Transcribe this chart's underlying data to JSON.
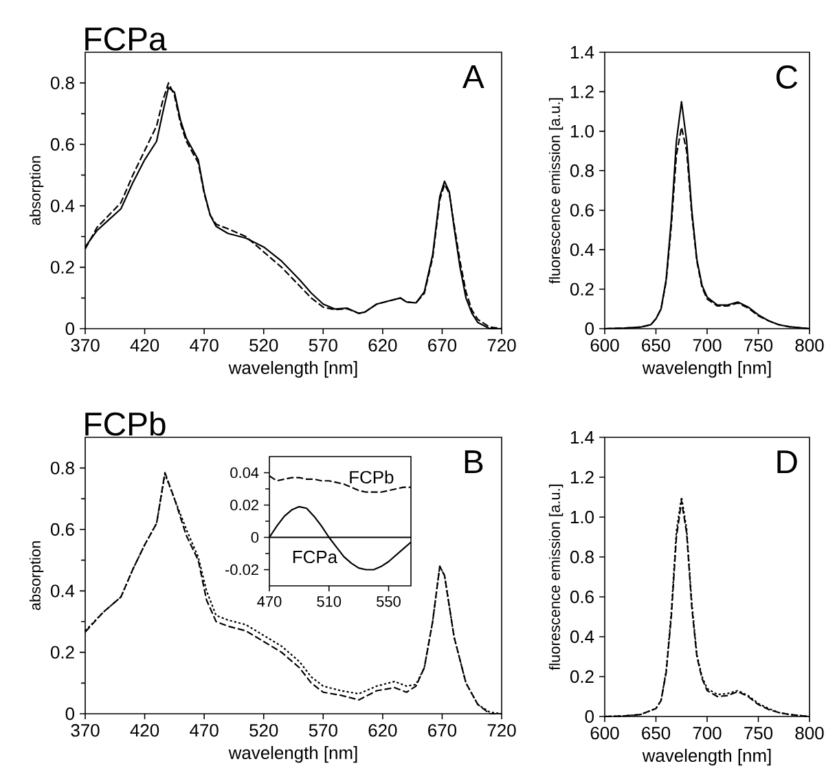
{
  "chart_data": [
    {
      "type": "line",
      "title": "FCPa",
      "xlabel": "wavelength [nm]",
      "ylabel": "absorption",
      "annotations": [
        "A"
      ],
      "xlim": [
        370,
        720
      ],
      "ylim": [
        0,
        0.9
      ],
      "xticks": [
        370,
        420,
        470,
        520,
        570,
        620,
        670,
        720
      ],
      "yticks": [
        0,
        0.2,
        0.4,
        0.6,
        0.8
      ],
      "x": [
        370,
        380,
        390,
        400,
        410,
        420,
        430,
        435,
        440,
        445,
        450,
        455,
        465,
        470,
        475,
        480,
        490,
        505,
        520,
        535,
        550,
        560,
        570,
        580,
        590,
        600,
        605,
        615,
        625,
        635,
        640,
        648,
        655,
        662,
        668,
        672,
        676,
        680,
        685,
        690,
        695,
        700,
        710,
        720
      ],
      "series": [
        {
          "color": "#000000",
          "line_style": "solid",
          "values": [
            0.266,
            0.32,
            0.355,
            0.39,
            0.475,
            0.55,
            0.61,
            0.7,
            0.785,
            0.77,
            0.68,
            0.62,
            0.55,
            0.445,
            0.37,
            0.333,
            0.31,
            0.295,
            0.266,
            0.22,
            0.16,
            0.116,
            0.08,
            0.064,
            0.067,
            0.05,
            0.054,
            0.08,
            0.09,
            0.1,
            0.087,
            0.084,
            0.12,
            0.24,
            0.43,
            0.48,
            0.445,
            0.33,
            0.2,
            0.1,
            0.05,
            0.02,
            0,
            0
          ]
        },
        {
          "color": "#000000",
          "line_style": "dashed",
          "values": [
            0.26,
            0.33,
            0.37,
            0.41,
            0.5,
            0.58,
            0.66,
            0.74,
            0.8,
            0.76,
            0.67,
            0.61,
            0.54,
            0.44,
            0.37,
            0.34,
            0.325,
            0.3,
            0.25,
            0.2,
            0.14,
            0.1,
            0.07,
            0.062,
            0.065,
            0.05,
            0.054,
            0.08,
            0.09,
            0.1,
            0.087,
            0.084,
            0.115,
            0.23,
            0.42,
            0.47,
            0.44,
            0.34,
            0.22,
            0.12,
            0.06,
            0.03,
            0.005,
            0
          ]
        }
      ]
    },
    {
      "type": "line",
      "xlabel": "wavelength [nm]",
      "ylabel": "fluorescence emission [a.u.]",
      "annotations": [
        "C"
      ],
      "xlim": [
        600,
        800
      ],
      "ylim": [
        0,
        1.4
      ],
      "xticks": [
        600,
        650,
        700,
        750,
        800
      ],
      "yticks": [
        0,
        0.2,
        0.4,
        0.6,
        0.8,
        {
          "value": 1.0,
          "label": "1.0"
        },
        1.2,
        1.4
      ],
      "x": [
        600,
        620,
        635,
        645,
        650,
        655,
        660,
        665,
        670,
        675,
        680,
        685,
        690,
        695,
        700,
        710,
        720,
        730,
        740,
        750,
        760,
        770,
        780,
        790,
        800
      ],
      "series": [
        {
          "color": "#000000",
          "line_style": "solid",
          "values": [
            0,
            0.003,
            0.008,
            0.02,
            0.05,
            0.1,
            0.25,
            0.55,
            0.95,
            1.15,
            0.95,
            0.6,
            0.35,
            0.22,
            0.16,
            0.12,
            0.12,
            0.135,
            0.11,
            0.07,
            0.04,
            0.02,
            0.01,
            0.005,
            0
          ]
        },
        {
          "color": "#000000",
          "line_style": "dashed",
          "values": [
            0,
            0.003,
            0.008,
            0.02,
            0.05,
            0.1,
            0.24,
            0.52,
            0.88,
            1.02,
            0.9,
            0.58,
            0.34,
            0.21,
            0.15,
            0.115,
            0.115,
            0.13,
            0.105,
            0.065,
            0.04,
            0.02,
            0.01,
            0.005,
            0
          ]
        }
      ]
    },
    {
      "type": "line",
      "title": "FCPb",
      "xlabel": "wavelength [nm]",
      "ylabel": "absorption",
      "annotations": [
        "B"
      ],
      "xlim": [
        370,
        720
      ],
      "ylim": [
        0,
        0.9
      ],
      "xticks": [
        370,
        420,
        470,
        520,
        570,
        620,
        670,
        720
      ],
      "yticks": [
        0,
        0.2,
        0.4,
        0.6,
        0.8
      ],
      "x": [
        370,
        385,
        400,
        410,
        420,
        430,
        437,
        445,
        455,
        465,
        472,
        480,
        490,
        505,
        520,
        535,
        550,
        560,
        570,
        585,
        600,
        615,
        630,
        640,
        648,
        655,
        662,
        668,
        672,
        680,
        690,
        700,
        710,
        720
      ],
      "series": [
        {
          "color": "#000000",
          "line_style": "dashed",
          "values": [
            0.266,
            0.33,
            0.38,
            0.47,
            0.55,
            0.62,
            0.785,
            0.7,
            0.58,
            0.5,
            0.37,
            0.3,
            0.285,
            0.27,
            0.235,
            0.2,
            0.15,
            0.1,
            0.07,
            0.06,
            0.045,
            0.075,
            0.085,
            0.07,
            0.09,
            0.15,
            0.3,
            0.48,
            0.45,
            0.25,
            0.1,
            0.03,
            0,
            0
          ]
        },
        {
          "color": "#000000",
          "line_style": "dotted",
          "values": [
            0.27,
            0.33,
            0.38,
            0.47,
            0.55,
            0.62,
            0.78,
            0.7,
            0.6,
            0.51,
            0.4,
            0.32,
            0.305,
            0.29,
            0.255,
            0.22,
            0.17,
            0.12,
            0.09,
            0.075,
            0.065,
            0.09,
            0.105,
            0.09,
            0.095,
            0.15,
            0.3,
            0.48,
            0.45,
            0.25,
            0.1,
            0.03,
            0.005,
            0
          ]
        }
      ]
    },
    {
      "type": "line",
      "xlim": [
        470,
        565
      ],
      "ylim": [
        -0.03,
        0.05
      ],
      "xticks": [
        470,
        510,
        550
      ],
      "yticks": [
        -0.02,
        0,
        0.02,
        0.04
      ],
      "ref_lines": [
        {
          "axis": "y",
          "value": 0
        }
      ],
      "x": [
        470,
        475,
        480,
        485,
        490,
        495,
        500,
        505,
        510,
        515,
        520,
        525,
        530,
        535,
        540,
        545,
        550,
        555,
        560,
        565
      ],
      "series": [
        {
          "name": "FCPb",
          "color": "#000000",
          "line_style": "dashed",
          "values": [
            0.038,
            0.035,
            0.036,
            0.037,
            0.037,
            0.036,
            0.036,
            0.035,
            0.035,
            0.034,
            0.033,
            0.031,
            0.029,
            0.028,
            0.028,
            0.028,
            0.029,
            0.03,
            0.031,
            0.031
          ]
        },
        {
          "name": "FCPa",
          "color": "#000000",
          "line_style": "solid",
          "values": [
            0,
            0.007,
            0.013,
            0.017,
            0.019,
            0.018,
            0.013,
            0.007,
            0,
            -0.006,
            -0.012,
            -0.016,
            -0.019,
            -0.02,
            -0.02,
            -0.018,
            -0.015,
            -0.011,
            -0.007,
            -0.003
          ]
        }
      ]
    },
    {
      "type": "line",
      "xlabel": "wavelength [nm]",
      "ylabel": "fluorescence emission [a.u.]",
      "annotations": [
        "D"
      ],
      "xlim": [
        600,
        800
      ],
      "ylim": [
        0,
        1.4
      ],
      "xticks": [
        600,
        650,
        700,
        750,
        800
      ],
      "yticks": [
        0,
        0.2,
        0.4,
        0.6,
        0.8,
        {
          "value": 1.0,
          "label": "1.0"
        },
        1.2,
        1.4
      ],
      "x": [
        600,
        620,
        635,
        645,
        650,
        655,
        660,
        665,
        670,
        675,
        680,
        685,
        690,
        695,
        700,
        710,
        720,
        730,
        740,
        750,
        760,
        770,
        780,
        790,
        800
      ],
      "series": [
        {
          "color": "#000000",
          "line_style": "dashed",
          "values": [
            0,
            0.003,
            0.01,
            0.03,
            0.04,
            0.08,
            0.22,
            0.5,
            0.9,
            1.08,
            0.92,
            0.55,
            0.3,
            0.19,
            0.13,
            0.1,
            0.105,
            0.125,
            0.1,
            0.06,
            0.035,
            0.02,
            0.01,
            0.005,
            0
          ]
        },
        {
          "color": "#000000",
          "line_style": "dotted",
          "values": [
            0,
            0.003,
            0.01,
            0.03,
            0.04,
            0.08,
            0.23,
            0.52,
            0.93,
            1.1,
            0.94,
            0.57,
            0.31,
            0.2,
            0.14,
            0.11,
            0.115,
            0.13,
            0.105,
            0.065,
            0.04,
            0.02,
            0.01,
            0.005,
            0
          ]
        }
      ]
    }
  ]
}
